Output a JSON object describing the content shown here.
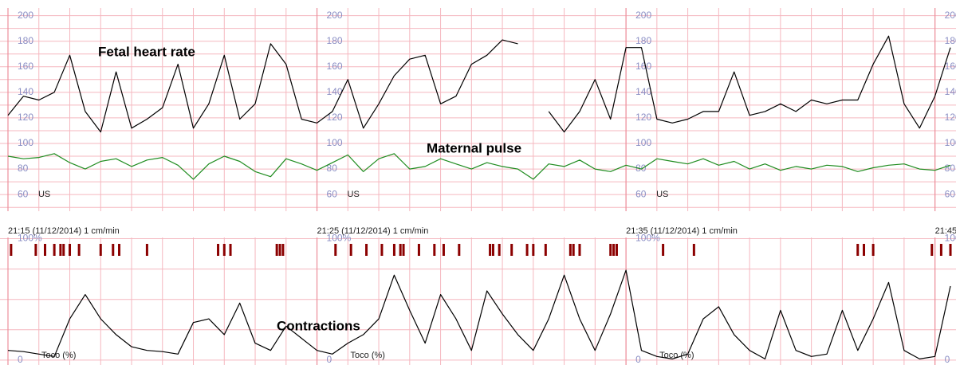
{
  "chart_data": [
    {
      "type": "line",
      "x": [
        0,
        0.5,
        1,
        1.5,
        2,
        2.5,
        3,
        3.5,
        4,
        4.5,
        5,
        5.5,
        6,
        6.5,
        7,
        7.5,
        8,
        8.5,
        9,
        9.5,
        10,
        10.5,
        11,
        11.5,
        12,
        12.5,
        13,
        13.5,
        14,
        14.5,
        15,
        15.5,
        16,
        16.5,
        17,
        17.5,
        18,
        18.5,
        19,
        19.5,
        20,
        20.5,
        21,
        21.5,
        22,
        22.5,
        23,
        23.5,
        24,
        24.5,
        25,
        25.5,
        26,
        26.5,
        27,
        27.5,
        28,
        28.5,
        29,
        29.5,
        30,
        30.5
      ],
      "series": [
        {
          "name": "Fetal heart rate",
          "color": "#000000",
          "values": [
            122,
            137,
            134,
            140,
            169,
            125,
            109,
            156,
            112,
            119,
            128,
            162,
            112,
            131,
            169,
            119,
            131,
            178,
            162,
            119,
            116,
            125,
            150,
            112,
            131,
            153,
            166,
            169,
            131,
            137,
            162,
            169,
            181,
            178,
            null,
            125,
            109,
            125,
            150,
            119,
            175,
            175,
            119,
            116,
            119,
            125,
            125,
            156,
            122,
            125,
            131,
            125,
            134,
            131,
            134,
            134,
            162,
            184,
            131,
            112,
            137,
            175
          ]
        },
        {
          "name": "Maternal pulse",
          "color": "#1f8c1f",
          "values": [
            90,
            88,
            89,
            92,
            85,
            80,
            86,
            88,
            82,
            87,
            89,
            83,
            72,
            84,
            90,
            86,
            78,
            74,
            88,
            84,
            79,
            85,
            91,
            78,
            88,
            92,
            80,
            82,
            88,
            84,
            80,
            85,
            82,
            80,
            72,
            84,
            82,
            87,
            80,
            78,
            83,
            80,
            88,
            86,
            84,
            88,
            83,
            86,
            80,
            84,
            79,
            82,
            80,
            83,
            82,
            78,
            81,
            83,
            84,
            80,
            79,
            83
          ]
        }
      ],
      "channel_label": "US",
      "xlim": [
        -0.258,
        30.68
      ],
      "xgrid": [
        0,
        1,
        2,
        3,
        4,
        5,
        6,
        7,
        8,
        9,
        10,
        11,
        12,
        13,
        14,
        15,
        16,
        17,
        18,
        19,
        20,
        21,
        22,
        23,
        24,
        25,
        26,
        27,
        28,
        29,
        30
      ],
      "ylim": [
        47,
        206
      ],
      "yticks": [
        60,
        80,
        100,
        120,
        140,
        160,
        180,
        200
      ],
      "ygrid": [
        50,
        60,
        70,
        80,
        90,
        100,
        110,
        120,
        130,
        140,
        150,
        160,
        170,
        180,
        190,
        200
      ],
      "grid": true
    },
    {
      "type": "line",
      "x": [
        0,
        0.5,
        1,
        1.5,
        2,
        2.5,
        3,
        3.5,
        4,
        4.5,
        5,
        5.5,
        6,
        6.5,
        7,
        7.5,
        8,
        8.5,
        9,
        9.5,
        10,
        10.5,
        11,
        11.5,
        12,
        12.5,
        13,
        13.5,
        14,
        14.5,
        15,
        15.5,
        16,
        16.5,
        17,
        17.5,
        18,
        18.5,
        19,
        19.5,
        20,
        20.5,
        21,
        21.5,
        22,
        22.5,
        23,
        23.5,
        24,
        24.5,
        25,
        25.5,
        26,
        26.5,
        27,
        27.5,
        28,
        28.5,
        29,
        29.5,
        30,
        30.5
      ],
      "series": [
        {
          "name": "Contractions",
          "color": "#000000",
          "values": [
            8,
            7,
            5,
            3,
            34,
            54,
            34,
            21,
            11,
            8,
            7,
            5,
            31,
            34,
            21,
            47,
            14,
            8,
            28,
            18,
            8,
            5,
            14,
            21,
            34,
            70,
            41,
            14,
            54,
            34,
            8,
            57,
            38,
            21,
            8,
            34,
            70,
            34,
            8,
            38,
            74,
            8,
            3,
            1,
            5,
            34,
            44,
            21,
            8,
            1,
            41,
            8,
            3,
            5,
            41,
            8,
            34,
            64,
            8,
            1,
            3,
            61
          ]
        }
      ],
      "markers": {
        "color": "#8b0000",
        "x": [
          0.1,
          0.9,
          1.2,
          1.5,
          1.7,
          1.8,
          2.0,
          2.3,
          3.0,
          3.4,
          3.6,
          4.5,
          6.8,
          7.0,
          7.2,
          8.7,
          8.8,
          8.9,
          10.6,
          11.1,
          11.6,
          12.1,
          12.5,
          12.7,
          12.8,
          13.3,
          13.8,
          14.1,
          14.6,
          15.6,
          15.7,
          15.9,
          16.3,
          16.8,
          17.0,
          17.4,
          18.2,
          18.3,
          18.5,
          19.5,
          19.6,
          19.7,
          21.2,
          22.2,
          27.5,
          27.7,
          28.0,
          29.9,
          30.2,
          30.5
        ]
      },
      "channel_label": "Toco (%)",
      "xlim": [
        -0.258,
        30.68
      ],
      "xticks": [
        {
          "value": 0,
          "label": "21:15 (11/12/2014) 1 cm/min"
        },
        {
          "value": 10,
          "label": "21:25 (11/12/2014) 1 cm/min"
        },
        {
          "value": 20,
          "label": "21:35 (11/12/2014) 1 cm/min"
        },
        {
          "value": 30,
          "label": "21:45"
        }
      ],
      "xgrid": [
        0,
        1,
        2,
        3,
        4,
        5,
        6,
        7,
        8,
        9,
        10,
        11,
        12,
        13,
        14,
        15,
        16,
        17,
        18,
        19,
        20,
        21,
        22,
        23,
        24,
        25,
        26,
        27,
        28,
        29,
        30
      ],
      "ylim": [
        -4,
        101
      ],
      "yticks": [
        0,
        {
          "value": 100,
          "label": "100%"
        }
      ],
      "ygrid": [
        0,
        25,
        50,
        75,
        100
      ],
      "grid": true
    }
  ]
}
